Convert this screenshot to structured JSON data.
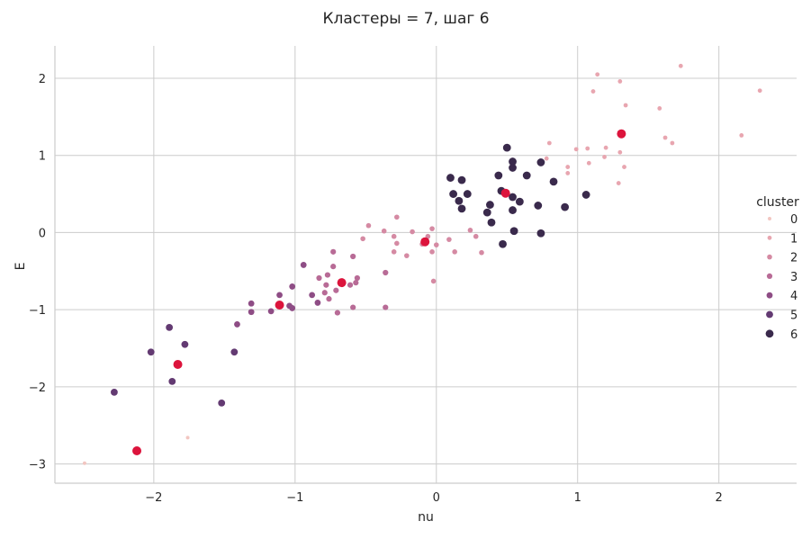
{
  "chart_data": {
    "type": "scatter",
    "title": "Кластеры = 7, шаг 6",
    "xlabel": "nu",
    "ylabel": "E",
    "xlim": [
      -2.7,
      2.55
    ],
    "ylim": [
      -3.25,
      2.42
    ],
    "xticks": [
      -2,
      -1,
      0,
      1,
      2
    ],
    "yticks": [
      -3,
      -2,
      -1,
      0,
      1,
      2
    ],
    "xtick_labels": [
      "−2",
      "−1",
      "0",
      "1",
      "2"
    ],
    "ytick_labels": [
      "−3",
      "−2",
      "−1",
      "0",
      "1",
      "2"
    ],
    "grid": true,
    "legend_position": "right",
    "legend": {
      "title": "cluster",
      "entries": [
        "0",
        "1",
        "2",
        "3",
        "4",
        "5",
        "6"
      ]
    },
    "series": [
      {
        "name": "0",
        "color": "#f2c6c1",
        "points": [
          [
            -2.49,
            -2.99
          ],
          [
            -1.76,
            -2.66
          ]
        ]
      },
      {
        "name": "1",
        "color": "#e8a6b0",
        "points": [
          [
            1.14,
            2.05
          ],
          [
            1.3,
            1.96
          ],
          [
            1.73,
            2.16
          ],
          [
            2.29,
            1.84
          ],
          [
            1.11,
            1.83
          ],
          [
            1.34,
            1.65
          ],
          [
            1.58,
            1.61
          ],
          [
            0.8,
            1.16
          ],
          [
            1.62,
            1.23
          ],
          [
            1.67,
            1.16
          ],
          [
            2.16,
            1.26
          ],
          [
            0.99,
            1.08
          ],
          [
            1.07,
            1.09
          ],
          [
            1.2,
            1.1
          ],
          [
            1.3,
            1.04
          ],
          [
            0.78,
            0.96
          ],
          [
            1.19,
            0.98
          ],
          [
            0.93,
            0.85
          ],
          [
            1.08,
            0.9
          ],
          [
            1.33,
            0.85
          ],
          [
            0.93,
            0.77
          ],
          [
            1.29,
            0.64
          ]
        ]
      },
      {
        "name": "2",
        "color": "#d58aa3",
        "points": [
          [
            -0.28,
            0.2
          ],
          [
            -0.48,
            0.09
          ],
          [
            -0.37,
            0.02
          ],
          [
            -0.17,
            0.01
          ],
          [
            -0.03,
            0.05
          ],
          [
            -0.3,
            -0.05
          ],
          [
            -0.52,
            -0.08
          ],
          [
            -0.06,
            -0.05
          ],
          [
            0.09,
            -0.09
          ],
          [
            0.24,
            0.03
          ],
          [
            0.28,
            -0.05
          ],
          [
            -0.1,
            -0.15
          ],
          [
            -0.28,
            -0.14
          ],
          [
            0.0,
            -0.16
          ],
          [
            -0.3,
            -0.25
          ],
          [
            -0.03,
            -0.25
          ],
          [
            -0.21,
            -0.3
          ],
          [
            0.13,
            -0.25
          ],
          [
            0.32,
            -0.26
          ],
          [
            -0.02,
            -0.63
          ]
        ]
      },
      {
        "name": "3",
        "color": "#b86b96",
        "points": [
          [
            -0.73,
            -0.25
          ],
          [
            -0.59,
            -0.31
          ],
          [
            -0.73,
            -0.44
          ],
          [
            -0.77,
            -0.55
          ],
          [
            -0.83,
            -0.59
          ],
          [
            -0.56,
            -0.59
          ],
          [
            -0.57,
            -0.65
          ],
          [
            -0.61,
            -0.68
          ],
          [
            -0.78,
            -0.68
          ],
          [
            -0.71,
            -0.75
          ],
          [
            -0.79,
            -0.78
          ],
          [
            -0.76,
            -0.86
          ],
          [
            -0.59,
            -0.97
          ],
          [
            -0.7,
            -1.04
          ],
          [
            -0.36,
            -0.97
          ],
          [
            -0.36,
            -0.52
          ]
        ]
      },
      {
        "name": "4",
        "color": "#8e4d85",
        "points": [
          [
            -0.94,
            -0.42
          ],
          [
            -1.02,
            -0.7
          ],
          [
            -0.88,
            -0.81
          ],
          [
            -1.11,
            -0.81
          ],
          [
            -0.84,
            -0.91
          ],
          [
            -1.31,
            -0.92
          ],
          [
            -1.04,
            -0.95
          ],
          [
            -1.02,
            -0.98
          ],
          [
            -1.31,
            -1.03
          ],
          [
            -1.17,
            -1.02
          ],
          [
            -1.41,
            -1.19
          ]
        ]
      },
      {
        "name": "5",
        "color": "#633a72",
        "points": [
          [
            -1.89,
            -1.23
          ],
          [
            -1.78,
            -1.45
          ],
          [
            -2.02,
            -1.55
          ],
          [
            -1.43,
            -1.55
          ],
          [
            -1.87,
            -1.93
          ],
          [
            -2.28,
            -2.07
          ],
          [
            -1.52,
            -2.21
          ]
        ]
      },
      {
        "name": "6",
        "color": "#3a2a4c",
        "points": [
          [
            0.5,
            1.1
          ],
          [
            0.54,
            0.92
          ],
          [
            0.54,
            0.84
          ],
          [
            0.74,
            0.91
          ],
          [
            0.44,
            0.74
          ],
          [
            0.1,
            0.71
          ],
          [
            0.18,
            0.68
          ],
          [
            0.64,
            0.74
          ],
          [
            0.83,
            0.66
          ],
          [
            0.12,
            0.5
          ],
          [
            0.22,
            0.5
          ],
          [
            0.46,
            0.54
          ],
          [
            0.54,
            0.46
          ],
          [
            0.59,
            0.4
          ],
          [
            1.06,
            0.49
          ],
          [
            0.16,
            0.41
          ],
          [
            0.38,
            0.36
          ],
          [
            0.18,
            0.31
          ],
          [
            0.36,
            0.26
          ],
          [
            0.72,
            0.35
          ],
          [
            0.91,
            0.33
          ],
          [
            0.54,
            0.29
          ],
          [
            0.39,
            0.13
          ],
          [
            0.55,
            0.02
          ],
          [
            0.74,
            -0.01
          ],
          [
            0.47,
            -0.15
          ]
        ]
      }
    ],
    "centroids": {
      "color": "#dc143c",
      "points": [
        [
          1.31,
          1.28
        ],
        [
          0.49,
          0.51
        ],
        [
          -0.08,
          -0.12
        ],
        [
          -0.67,
          -0.65
        ],
        [
          -1.11,
          -0.94
        ],
        [
          -1.83,
          -1.71
        ],
        [
          -2.12,
          -2.83
        ]
      ]
    }
  }
}
